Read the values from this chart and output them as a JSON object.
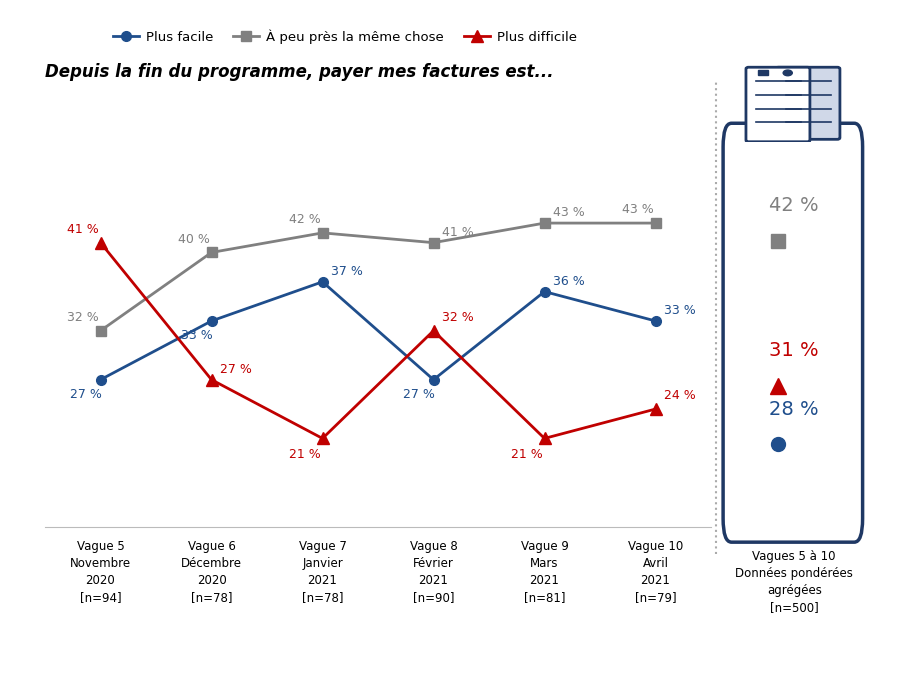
{
  "title": "Depuis la fin du programme, payer mes factures est...",
  "x_labels": [
    "Vague 5\nNovembre\n2020\n[n=94]",
    "Vague 6\nDécembre\n2020\n[n=78]",
    "Vague 7\nJanvier\n2021\n[n=78]",
    "Vague 8\nFévrier\n2021\n[n=90]",
    "Vague 9\nMars\n2021\n[n=81]",
    "Vague 10\nAvril\n2021\n[n=79]"
  ],
  "plus_facile": [
    27,
    33,
    37,
    27,
    36,
    33
  ],
  "meme_chose": [
    32,
    40,
    42,
    41,
    43,
    43
  ],
  "plus_difficile": [
    41,
    27,
    21,
    32,
    21,
    24
  ],
  "aggregated_label": "Vagues 5 à 10\nDonnées pondérées\nagrégées\n[n=500]",
  "aggregated_meme": 42,
  "aggregated_facile": 28,
  "aggregated_difficile": 31,
  "color_facile": "#1F4E8C",
  "color_meme": "#808080",
  "color_difficile": "#C00000",
  "legend_facile": "Plus facile",
  "legend_meme": "À peu près la même chose",
  "legend_difficile": "Plus difficile",
  "box_color": "#1F3864"
}
